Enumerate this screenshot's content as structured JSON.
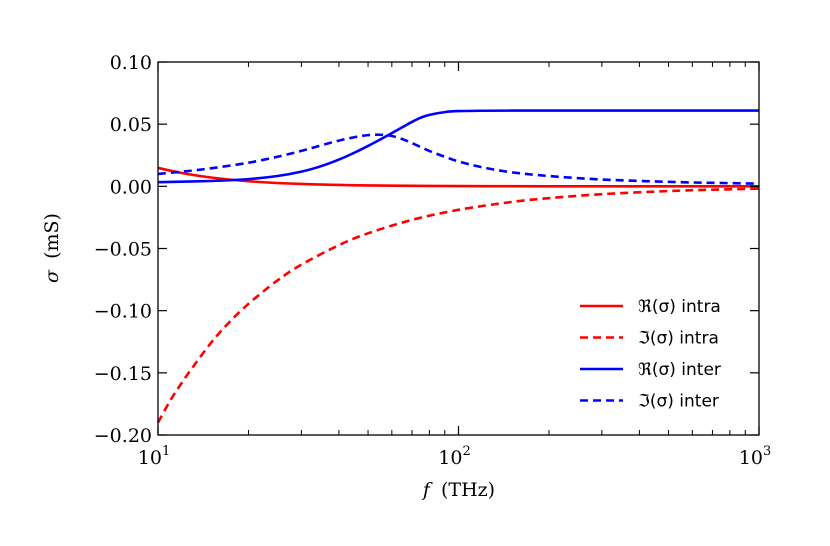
{
  "chart_data": {
    "type": "line",
    "title": "",
    "xscale": "log",
    "xlim": [
      10,
      1000
    ],
    "ylim": [
      -0.2,
      0.1
    ],
    "xlabel_symbol": "f",
    "xlabel_unit": "(THz)",
    "ylabel_symbol": "σ",
    "ylabel_unit": "(mS)",
    "x_ticks": [
      {
        "value": 10,
        "base": "10",
        "exp": "1"
      },
      {
        "value": 100,
        "base": "10",
        "exp": "2"
      },
      {
        "value": 1000,
        "base": "10",
        "exp": "3"
      }
    ],
    "y_ticks": [
      {
        "value": 0.1,
        "label": "0.10"
      },
      {
        "value": 0.05,
        "label": "0.05"
      },
      {
        "value": 0.0,
        "label": "0.00"
      },
      {
        "value": -0.05,
        "label": "−0.05"
      },
      {
        "value": -0.1,
        "label": "−0.10"
      },
      {
        "value": -0.15,
        "label": "−0.15"
      },
      {
        "value": -0.2,
        "label": "−0.20"
      }
    ],
    "legend_position": "lower-right",
    "series": [
      {
        "name": "ℜ(σ) intra",
        "color": "#ff0000",
        "style": "solid",
        "x": [
          10,
          12,
          15,
          20,
          30,
          50,
          100,
          200,
          500,
          1000
        ],
        "y": [
          0.0148,
          0.0107,
          0.0071,
          0.0041,
          0.0019,
          0.0007,
          0.0002,
          5e-05,
          0.0,
          0.0
        ]
      },
      {
        "name": "ℑ(σ) intra",
        "color": "#ff0000",
        "style": "dashed",
        "x": [
          10,
          11,
          12,
          13,
          15,
          17,
          20,
          25,
          30,
          40,
          50,
          70,
          100,
          150,
          200,
          300,
          500,
          700,
          1000
        ],
        "y": [
          -0.19,
          -0.172,
          -0.158,
          -0.146,
          -0.126,
          -0.111,
          -0.0945,
          -0.0756,
          -0.063,
          -0.0473,
          -0.0378,
          -0.027,
          -0.0189,
          -0.0126,
          -0.0095,
          -0.0063,
          -0.0038,
          -0.0027,
          -0.0019
        ]
      },
      {
        "name": "ℜ(σ) inter",
        "color": "#0000ff",
        "style": "solid",
        "x": [
          10,
          15,
          20,
          25,
          30,
          35,
          40,
          45,
          50,
          55,
          60,
          65,
          70,
          75,
          80,
          90,
          100,
          120,
          150,
          200,
          500,
          1000
        ],
        "y": [
          0.0033,
          0.0043,
          0.0058,
          0.0083,
          0.0118,
          0.0163,
          0.0215,
          0.027,
          0.0325,
          0.0378,
          0.0428,
          0.0475,
          0.0518,
          0.0553,
          0.0575,
          0.0597,
          0.0605,
          0.0608,
          0.0609,
          0.0609,
          0.0609,
          0.0609
        ]
      },
      {
        "name": "ℑ(σ) inter",
        "color": "#0000ff",
        "style": "dashed",
        "x": [
          10,
          12,
          15,
          20,
          25,
          30,
          35,
          40,
          45,
          50,
          55,
          60,
          65,
          70,
          80,
          90,
          100,
          120,
          150,
          200,
          300,
          500,
          700,
          1000
        ],
        "y": [
          0.01,
          0.0118,
          0.0145,
          0.019,
          0.0238,
          0.0285,
          0.033,
          0.0368,
          0.0395,
          0.0412,
          0.0415,
          0.0405,
          0.038,
          0.0348,
          0.0285,
          0.0238,
          0.02,
          0.0153,
          0.0113,
          0.0083,
          0.0055,
          0.0036,
          0.0028,
          0.0022
        ]
      }
    ]
  }
}
